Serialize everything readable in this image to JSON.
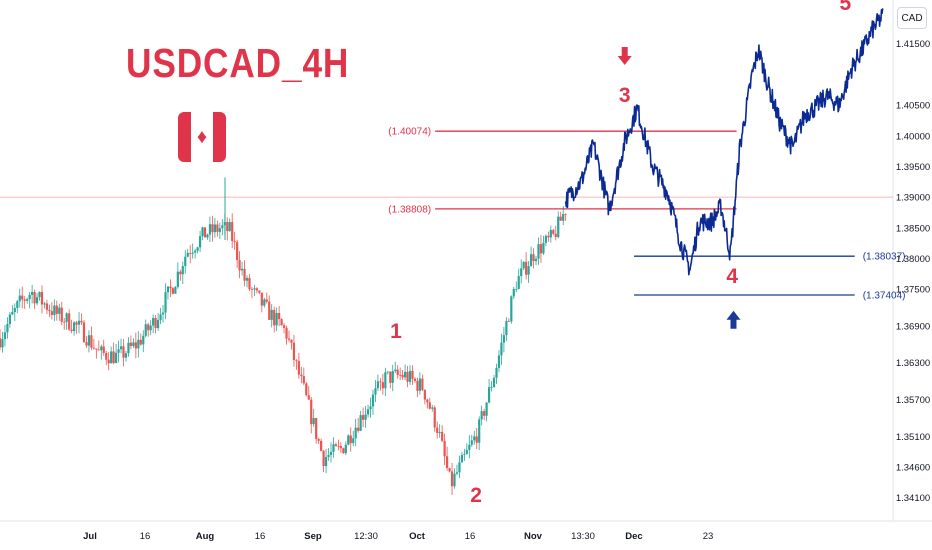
{
  "title": "USDCAD_4H",
  "currency_label": "CAD",
  "flag_icon": "canada-flag-icon",
  "colors": {
    "title": "#e0344a",
    "flag_red": "#e0344a",
    "wave_red": "#e0344a",
    "resistance": "#e0344a",
    "support": "#1a3a9a",
    "projection": "#0b2a92",
    "candle_up": "#26a69a",
    "candle_down": "#ef5350",
    "current_price_line": "#f5a0a0"
  },
  "chart_data": {
    "type": "candlestick",
    "symbol": "USDCAD",
    "timeframe": "4H",
    "ylim": [
      1.3385,
      1.4205
    ],
    "y_ticks": [
      "1.41500",
      "1.40500",
      "1.40000",
      "1.39500",
      "1.39000",
      "1.38500",
      "1.38000",
      "1.37500",
      "1.36900",
      "1.36300",
      "1.35700",
      "1.35100",
      "1.34600",
      "1.34100"
    ],
    "x_ticks": [
      "Jul",
      "16",
      "Aug",
      "16",
      "Sep",
      "12:30",
      "Oct",
      "16",
      "Nov",
      "13:30",
      "Dec",
      "23"
    ],
    "price_path": [
      {
        "t": 0.0,
        "p": 1.367
      },
      {
        "t": 0.3,
        "p": 1.3725
      },
      {
        "t": 0.5,
        "p": 1.3745
      },
      {
        "t": 0.9,
        "p": 1.371
      },
      {
        "t": 1.3,
        "p": 1.3685
      },
      {
        "t": 1.6,
        "p": 1.3645
      },
      {
        "t": 1.9,
        "p": 1.364
      },
      {
        "t": 2.2,
        "p": 1.366
      },
      {
        "t": 2.5,
        "p": 1.37
      },
      {
        "t": 2.8,
        "p": 1.376
      },
      {
        "t": 3.0,
        "p": 1.381
      },
      {
        "t": 3.3,
        "p": 1.384
      },
      {
        "t": 3.55,
        "p": 1.385
      },
      {
        "t": 3.7,
        "p": 1.3845
      },
      {
        "t": 3.95,
        "p": 1.376
      },
      {
        "t": 4.3,
        "p": 1.3715
      },
      {
        "t": 4.6,
        "p": 1.368
      },
      {
        "t": 4.9,
        "p": 1.358
      },
      {
        "t": 5.2,
        "p": 1.3475
      },
      {
        "t": 5.5,
        "p": 1.349
      },
      {
        "t": 5.8,
        "p": 1.354
      },
      {
        "t": 6.2,
        "p": 1.3605
      },
      {
        "t": 6.5,
        "p": 1.361
      },
      {
        "t": 6.8,
        "p": 1.359
      },
      {
        "t": 7.05,
        "p": 1.352
      },
      {
        "t": 7.25,
        "p": 1.343
      },
      {
        "t": 7.45,
        "p": 1.347
      },
      {
        "t": 7.7,
        "p": 1.352
      },
      {
        "t": 8.0,
        "p": 1.363
      },
      {
        "t": 8.3,
        "p": 1.376
      },
      {
        "t": 8.6,
        "p": 1.381
      },
      {
        "t": 8.9,
        "p": 1.3835
      },
      {
        "t": 9.1,
        "p": 1.388
      }
    ],
    "projection_path": [
      {
        "t": 9.1,
        "p": 1.3895
      },
      {
        "t": 9.35,
        "p": 1.3925
      },
      {
        "t": 9.55,
        "p": 1.3985
      },
      {
        "t": 9.8,
        "p": 1.388
      },
      {
        "t": 10.05,
        "p": 1.399
      },
      {
        "t": 10.25,
        "p": 1.4045
      },
      {
        "t": 10.5,
        "p": 1.395
      },
      {
        "t": 10.75,
        "p": 1.3905
      },
      {
        "t": 10.95,
        "p": 1.3825
      },
      {
        "t": 11.1,
        "p": 1.3782
      },
      {
        "t": 11.25,
        "p": 1.386
      },
      {
        "t": 11.45,
        "p": 1.386
      },
      {
        "t": 11.6,
        "p": 1.3885
      },
      {
        "t": 11.75,
        "p": 1.3806
      },
      {
        "t": 11.9,
        "p": 1.398
      },
      {
        "t": 12.1,
        "p": 1.41
      },
      {
        "t": 12.2,
        "p": 1.414
      },
      {
        "t": 12.35,
        "p": 1.4085
      },
      {
        "t": 12.55,
        "p": 1.402
      },
      {
        "t": 12.75,
        "p": 1.398
      },
      {
        "t": 12.95,
        "p": 1.4035
      },
      {
        "t": 13.1,
        "p": 1.4045
      },
      {
        "t": 13.3,
        "p": 1.4065
      },
      {
        "t": 13.5,
        "p": 1.405
      },
      {
        "t": 13.7,
        "p": 1.411
      },
      {
        "t": 13.9,
        "p": 1.4145
      },
      {
        "t": 14.05,
        "p": 1.4175
      },
      {
        "t": 14.2,
        "p": 1.4195
      }
    ],
    "levels": [
      {
        "name": "resistance-upper",
        "label": "(1.40074)",
        "value": 1.40074,
        "color": "#e0344a",
        "t_start": 7.0,
        "t_end": 11.85
      },
      {
        "name": "resistance-lower",
        "label": "(1.38808)",
        "value": 1.38808,
        "color": "#e0344a",
        "t_start": 7.0,
        "t_end": 11.85
      },
      {
        "name": "support-upper",
        "label": "(1.38037)",
        "value": 1.38037,
        "color": "#1a3a9a",
        "t_start": 10.2,
        "t_end": 13.75
      },
      {
        "name": "support-lower",
        "label": "(1.37404)",
        "value": 1.37404,
        "color": "#1a3a9a",
        "t_start": 10.2,
        "t_end": 13.75
      }
    ],
    "current_price": 1.39,
    "wave_labels": [
      {
        "label": "1",
        "t": 6.37,
        "p": 1.367
      },
      {
        "label": "2",
        "t": 7.66,
        "p": 1.3403
      },
      {
        "label": "3",
        "t": 10.05,
        "p": 1.4055
      },
      {
        "label": "4",
        "t": 11.78,
        "p": 1.376
      },
      {
        "label": "5",
        "t": 13.6,
        "p": 1.4205
      }
    ],
    "arrows": [
      {
        "name": "sell-arrow",
        "direction": "down",
        "t": 10.05,
        "p": 1.413
      },
      {
        "name": "buy-arrow",
        "direction": "up",
        "t": 11.8,
        "p": 1.37
      }
    ]
  }
}
